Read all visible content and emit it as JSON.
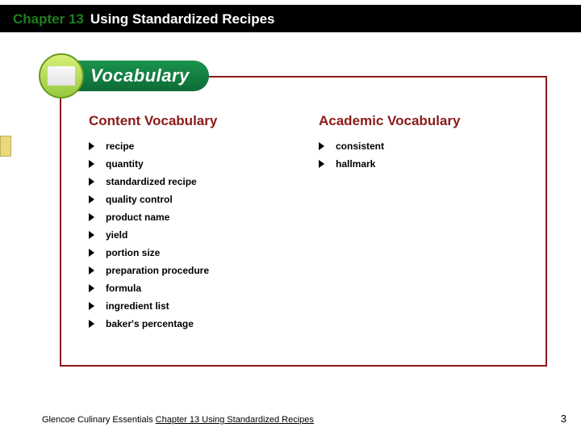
{
  "header": {
    "chapter": "Chapter 13",
    "title": "Using Standardized Recipes"
  },
  "badge": {
    "label": "Vocabulary"
  },
  "sections": {
    "content": {
      "heading": "Content Vocabulary",
      "items": [
        "recipe",
        "quantity",
        "standardized recipe",
        "quality control",
        "product name",
        "yield",
        "portion size",
        "preparation procedure",
        "formula",
        "ingredient list",
        "baker's percentage"
      ]
    },
    "academic": {
      "heading": "Academic Vocabulary",
      "items": [
        "consistent",
        "hallmark"
      ]
    }
  },
  "footer": {
    "source": "Glencoe Culinary Essentials",
    "chapter_ref": "Chapter 13 Using Standardized Recipes",
    "page": "3"
  },
  "colors": {
    "accent_red": "#8b1a1a",
    "header_green": "#1f7f1f",
    "badge_green": "#0d6b37"
  }
}
